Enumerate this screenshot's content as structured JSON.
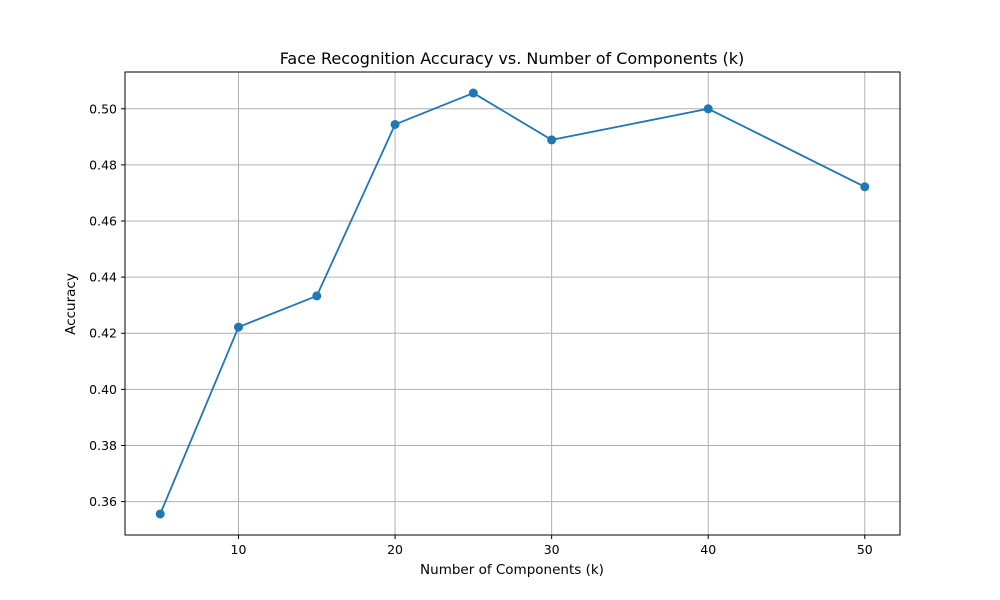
{
  "chart_data": {
    "type": "line",
    "title": "Face Recognition Accuracy vs. Number of Components (k)",
    "xlabel": "Number of Components (k)",
    "ylabel": "Accuracy",
    "x": [
      5,
      10,
      15,
      20,
      25,
      30,
      40,
      50
    ],
    "series": [
      {
        "values": [
          0.3556,
          0.4222,
          0.4333,
          0.4944,
          0.5056,
          0.4889,
          0.5,
          0.4722
        ],
        "color": "#1f77b4",
        "marker": "circle"
      }
    ],
    "xlim": [
      2.75,
      52.25
    ],
    "ylim": [
      0.3481,
      0.5131
    ],
    "xticks": [
      10,
      20,
      30,
      40,
      50
    ],
    "yticks": [
      0.36,
      0.38,
      0.4,
      0.42,
      0.44,
      0.46,
      0.48,
      0.5
    ],
    "xtick_labels": [
      "10",
      "20",
      "30",
      "40",
      "50"
    ],
    "ytick_labels": [
      "0.36",
      "0.38",
      "0.40",
      "0.42",
      "0.44",
      "0.46",
      "0.48",
      "0.50"
    ],
    "grid": true,
    "grid_color": "#b0b0b0",
    "axis_color": "#000000"
  }
}
